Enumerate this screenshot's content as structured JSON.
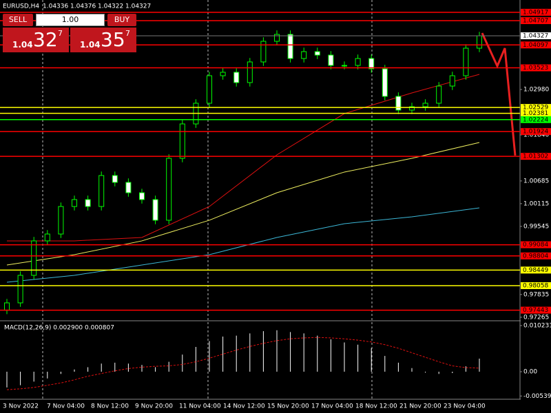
{
  "chart_data": {
    "type": "candlestick",
    "symbol": "EURUSD,H4",
    "header_values": [
      1.04336,
      1.04376,
      1.04322,
      1.04327
    ],
    "current_price": 1.04327,
    "ylim": [
      0.97194,
      1.05225
    ],
    "yticks": [
      {
        "value": 1.0298,
        "label": "1.02980"
      },
      {
        "value": 1.0184,
        "label": "1.01840"
      },
      1.00685,
      1.00115,
      0.99545,
      0.97835,
      0.97265
    ],
    "up_color": "#000000",
    "down_color": "#ffffff",
    "candle_stroke": "#00ff00",
    "open": [
      0.97443,
      0.97626,
      0.98317,
      0.99181,
      0.99353,
      1.00044,
      1.00217,
      1.00044,
      1.00821,
      1.00649,
      1.00389,
      1.00217,
      0.99699,
      1.01253,
      1.02116,
      1.02635,
      1.03325,
      1.03412,
      1.03153,
      1.03671,
      1.04189,
      1.04362,
      1.03757,
      1.0393,
      1.03843,
      1.03584,
      1.03584,
      1.03757,
      1.03498,
      1.02807,
      1.02462,
      1.02548,
      1.02635,
      1.03066,
      1.03325,
      1.04016
    ],
    "high": [
      0.97726,
      0.98417,
      0.99281,
      0.99453,
      1.00144,
      1.00317,
      1.00317,
      1.00921,
      1.00921,
      1.00749,
      1.00489,
      1.00317,
      1.01353,
      1.02216,
      1.02735,
      1.03425,
      1.03512,
      1.03512,
      1.03771,
      1.04289,
      1.04462,
      1.04462,
      1.0403,
      1.0403,
      1.03943,
      1.03684,
      1.03857,
      1.03857,
      1.03598,
      1.02907,
      1.02648,
      1.02735,
      1.03166,
      1.03425,
      1.04116,
      1.04427
    ],
    "low": [
      0.97343,
      0.97526,
      0.98217,
      0.99081,
      0.99253,
      0.99944,
      0.99944,
      0.99944,
      1.00549,
      1.00289,
      1.00117,
      0.99599,
      0.99599,
      1.01153,
      1.02016,
      1.02535,
      1.03225,
      1.03053,
      1.03053,
      1.03571,
      1.04089,
      1.03657,
      1.03657,
      1.03743,
      1.03484,
      1.03484,
      1.03484,
      1.03398,
      1.02707,
      1.02362,
      1.02362,
      1.02448,
      1.02535,
      1.02966,
      1.03225,
      1.03916
    ],
    "close": [
      0.97626,
      0.98317,
      0.99181,
      0.99353,
      1.00044,
      1.00217,
      1.00044,
      1.00821,
      1.00649,
      1.00389,
      1.00217,
      0.99699,
      1.01253,
      1.02116,
      1.02635,
      1.03325,
      1.03412,
      1.03153,
      1.03671,
      1.04189,
      1.04362,
      1.03757,
      1.0393,
      1.03843,
      1.03584,
      1.03584,
      1.03757,
      1.03498,
      1.02807,
      1.02462,
      1.02548,
      1.02635,
      1.03066,
      1.03325,
      1.04016,
      1.04327
    ],
    "ma_x": [
      0,
      5,
      10,
      15,
      20,
      25,
      30,
      35
    ],
    "moving_averages": [
      {
        "color": "#e01010",
        "values": [
          0.99181,
          0.99181,
          0.99267,
          1.00044,
          1.01339,
          1.02375,
          1.02894,
          1.0336
        ]
      },
      {
        "color": "#f0f060",
        "values": [
          0.98576,
          0.98835,
          0.99181,
          0.99699,
          1.00389,
          1.00908,
          1.01253,
          1.0165
        ]
      },
      {
        "color": "#3cb8d8",
        "values": [
          0.98144,
          0.98317,
          0.98576,
          0.98835,
          0.99267,
          0.99612,
          0.99785,
          1.00009
        ]
      }
    ],
    "price_levels": [
      {
        "value": 1.04917,
        "color": "#ff0000"
      },
      {
        "value": 1.04707,
        "color": "#ff0000"
      },
      {
        "value": 1.04097,
        "color": "#ff0000"
      },
      {
        "value": 1.03523,
        "color": "#ff0000"
      },
      {
        "value": 1.02529,
        "color": "#ffff00"
      },
      {
        "value": 1.02381,
        "color": "#ffff00"
      },
      {
        "value": 1.02224,
        "color": "#00ff00"
      },
      {
        "value": 1.01924,
        "color": "#ff0000"
      },
      {
        "value": 1.01302,
        "color": "#ff0000"
      },
      {
        "value": 0.99084,
        "color": "#ff0000"
      },
      {
        "value": 0.98804,
        "color": "#ff0000"
      },
      {
        "value": 0.98449,
        "color": "#ffff00"
      },
      {
        "value": 0.98058,
        "color": "#ffff00"
      },
      {
        "value": 0.97443,
        "color": "#ff0000"
      }
    ],
    "x_labels": [
      "3 Nov 2022",
      "7 Nov 04:00",
      "8 Nov 12:00",
      "9 Nov 20:00",
      "11 Nov 04:00",
      "14 Nov 12:00",
      "15 Nov 20:00",
      "17 Nov 04:00",
      "18 Nov 12:00",
      "21 Nov 20:00",
      "23 Nov 04:00"
    ],
    "macd": {
      "title": "MACD(12,26,9) 0.002900 0.000807",
      "ylim": [
        -0.00657,
        0.01115
      ],
      "yticks": [
        0.010231,
        {
          "value": 0,
          "label": "0.00"
        },
        -0.005393
      ],
      "histogram": [
        -0.0035,
        -0.003,
        -0.0022,
        -0.0015,
        -0.0005,
        0.0005,
        0.001,
        0.0018,
        0.002,
        0.0018,
        0.0015,
        0.001,
        0.0022,
        0.0038,
        0.0055,
        0.0068,
        0.0078,
        0.008,
        0.0085,
        0.009,
        0.0092,
        0.0088,
        0.0085,
        0.008,
        0.0072,
        0.0065,
        0.006,
        0.0052,
        0.0035,
        0.002,
        0.0008,
        -0.0002,
        -0.0005,
        -0.0003,
        0.0012,
        0.0029
      ],
      "signal": [
        -0.004,
        -0.0038,
        -0.0035,
        -0.003,
        -0.0025,
        -0.0018,
        -0.001,
        -0.0004,
        0.0002,
        0.0007,
        0.001,
        0.0012,
        0.0013,
        0.0016,
        0.0022,
        0.003,
        0.0039,
        0.0048,
        0.0056,
        0.0063,
        0.0069,
        0.0073,
        0.0075,
        0.0076,
        0.0075,
        0.0073,
        0.007,
        0.0066,
        0.006,
        0.0052,
        0.0042,
        0.0032,
        0.0022,
        0.0013,
        0.0009,
        0.0008
      ],
      "signal_color": "#e01010",
      "histogram_color": "#ffffff"
    }
  },
  "trade_panel": {
    "sell": "SELL",
    "buy": "BUY",
    "volume": "1.00",
    "bid": [
      "1.04",
      "32",
      "7"
    ],
    "ask": [
      "1.04",
      "35",
      "7"
    ]
  }
}
